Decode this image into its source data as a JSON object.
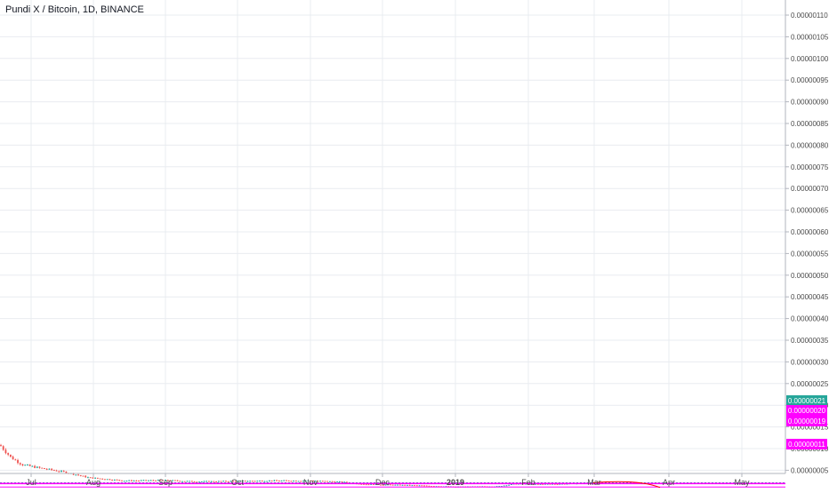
{
  "chart_data": {
    "type": "candlestick",
    "title": "Pundi X / Bitcoin, 1D, BINANCE",
    "y_axis": {
      "position": "right",
      "ylim": [
        4e-08,
        1.13e-07
      ],
      "ticks": [
        "0.00000005",
        "0.00000010",
        "0.00000015",
        "0.00000020",
        "0.00000025",
        "0.00000030",
        "0.00000035",
        "0.00000040",
        "0.00000045",
        "0.00000050",
        "0.00000055",
        "0.00000060",
        "0.00000065",
        "0.00000070",
        "0.00000075",
        "0.00000080",
        "0.00000085",
        "0.00000090",
        "0.00000095",
        "0.00000100",
        "0.00000105",
        "0.00000110"
      ]
    },
    "x_axis": {
      "ticks": [
        "Jul",
        "Aug",
        "Sep",
        "Oct",
        "Nov",
        "Dec",
        "2019",
        "Feb",
        "Mar",
        "Apr",
        "May"
      ]
    },
    "price_labels": [
      {
        "text": "0.00000021",
        "color": "#26a69a"
      },
      {
        "text": "0.00000020",
        "color": "#ff00ff"
      },
      {
        "text": "0.00000019",
        "color": "#ff00ff"
      },
      {
        "text": "0.00000011",
        "color": "#ff00ff"
      }
    ],
    "horizontal_lines": [
      {
        "value": 2.12e-08,
        "color": "#26a69a",
        "style": "dotted"
      },
      {
        "value": 2.02e-08,
        "color": "#ff00ff",
        "style": "solid"
      },
      {
        "value": 1.88e-08,
        "color": "#ff00ff",
        "style": "solid"
      },
      {
        "value": 1.15e-08,
        "color": "#ff00ff",
        "style": "solid"
      }
    ],
    "projection_arc": {
      "color": "#ff0000",
      "from_value": 2.12e-08,
      "to_value": 1.02e-08
    },
    "colors": {
      "up": "#26a69a",
      "down": "#ef5350",
      "grid": "#e9ecf0",
      "axis_text": "#4a4a4a"
    },
    "candle_summary": [
      {
        "label": "Jul",
        "open": 1.1e-07,
        "close": 6e-08,
        "note": "sharp decline"
      },
      {
        "label": "Aug",
        "open": 6e-08,
        "close": 2.4e-08
      },
      {
        "label": "Sep",
        "open": 2.4e-08,
        "close": 2.5e-08
      },
      {
        "label": "Oct",
        "open": 2.5e-08,
        "close": 2.6e-08
      },
      {
        "label": "Nov",
        "open": 2.6e-08,
        "close": 1.8e-08
      },
      {
        "label": "Dec",
        "open": 1.8e-08,
        "close": 1.3e-08
      },
      {
        "label": "2019",
        "open": 1.3e-08,
        "close": 1.9e-08
      },
      {
        "label": "Feb",
        "open": 1.9e-08,
        "close": 2.1e-08
      }
    ]
  }
}
